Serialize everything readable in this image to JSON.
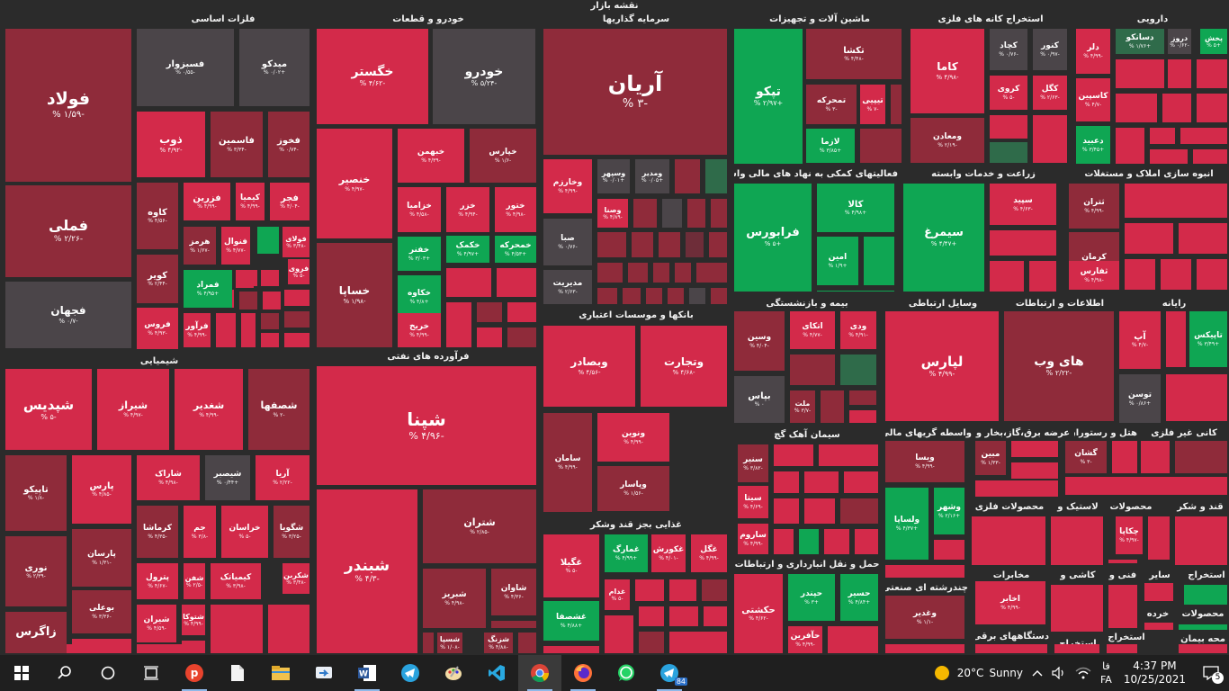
{
  "map_title": "نقشه بازار",
  "colors": {
    "red": "#d32a4a",
    "red2": "#c42542",
    "maroon": "#8f2b3a",
    "dkmaroon": "#6e2d39",
    "gray": "#4b4549",
    "green": "#0fa653",
    "dkgreen": "#2f6b4a",
    "mgreen": "#1e8c4f"
  },
  "sectors": [
    {
      "id": "s1",
      "title": "فلزات اساسی"
    },
    {
      "id": "s2",
      "title": "خودرو و قطعات"
    },
    {
      "id": "s3",
      "title": "سرمایه گذاریها"
    },
    {
      "id": "s4",
      "title": "ماشین آلات و تجهیزات"
    },
    {
      "id": "s5",
      "title": "استخراج کانه های فلزی"
    },
    {
      "id": "s6",
      "title": "دارویی"
    },
    {
      "id": "s7",
      "title": "شیمیایی"
    },
    {
      "id": "s8",
      "title": "فرآورده های نفتی"
    },
    {
      "id": "s9",
      "title": "بانکها و موسسات اعتباری"
    },
    {
      "id": "s10",
      "title": "فعالیتهای کمکی به نهاد های مالی واسط"
    },
    {
      "id": "s11",
      "title": "زراعت و خدمات وابسته"
    },
    {
      "id": "s12",
      "title": "انبوه سازی املاک و مستغلات"
    },
    {
      "id": "s13",
      "title": "بیمه و بازنشستگی"
    },
    {
      "id": "s14",
      "title": "وسایل ارتباطی"
    },
    {
      "id": "s15",
      "title": "اطلاعات و ارتباطات"
    },
    {
      "id": "s16",
      "title": "رایانه"
    },
    {
      "id": "s17",
      "title": "سیمان آهک گچ"
    },
    {
      "id": "s18",
      "title": "واسطه گریهای مالی و"
    },
    {
      "id": "s19",
      "title": "عرضه برق،گاز،بخار و"
    },
    {
      "id": "s20",
      "title": "هتل و رستوران"
    },
    {
      "id": "s21",
      "title": "کانی غیر فلزی"
    },
    {
      "id": "s22",
      "title": "غذایی بجز قند وشکر"
    },
    {
      "id": "s23",
      "title": "محصولات فلزی"
    },
    {
      "id": "s24",
      "title": "لاستیک و"
    },
    {
      "id": "s25",
      "title": "محصولات"
    },
    {
      "id": "s26",
      "title": "قند و شکر"
    },
    {
      "id": "s27",
      "title": "حمل و نقل انبارداری و ارتباطات"
    },
    {
      "id": "s28",
      "title": "چندرشته ای صنعتی"
    },
    {
      "id": "s29",
      "title": "مخابرات"
    },
    {
      "id": "s30",
      "title": "کاشی و"
    },
    {
      "id": "s31",
      "title": "فنی و"
    },
    {
      "id": "s32",
      "title": "سایر"
    },
    {
      "id": "s33",
      "title": "استخراج"
    },
    {
      "id": "s34",
      "title": "دستگاههای برقی"
    },
    {
      "id": "s35",
      "title": "استخراج"
    },
    {
      "id": "s36",
      "title": "استخراج"
    },
    {
      "id": "s37",
      "title": "خرده"
    },
    {
      "id": "s38",
      "title": "محصولات"
    },
    {
      "id": "s39",
      "title": "محه بیمان"
    }
  ],
  "tiles": [
    {
      "n": "فولاد",
      "p": "-۱/۵۹ %"
    },
    {
      "n": "فسبزوار",
      "p": "-۰/۵۵ %"
    },
    {
      "n": "میدکو",
      "p": "+۰/۰۲ %"
    },
    {
      "n": "ذوب",
      "p": "-۴/۹۲ %"
    },
    {
      "n": "فاسمین",
      "p": "-۳/۳۴ %"
    },
    {
      "n": "فخوز",
      "p": "-۰/۷۴ %"
    },
    {
      "n": "فملی",
      "p": "-۲/۲۶ %"
    },
    {
      "n": "کاوه",
      "p": "-۴/۵۶ %"
    },
    {
      "n": "فزرین",
      "p": "-۴/۹۹ %"
    },
    {
      "n": "کیمیا",
      "p": "-۴/۹۹ %"
    },
    {
      "n": "فجر",
      "p": "-۴/۰۴ %"
    },
    {
      "n": "هرمز",
      "p": "-۱/۶۷ %"
    },
    {
      "n": "فنوال",
      "p": "-۴/۷۷ %"
    },
    {
      "n": "فولای",
      "p": "-۳/۴۸ %"
    },
    {
      "n": "کویر",
      "p": "-۲/۴۴ %"
    },
    {
      "n": "فمراد",
      "p": "+۴/۹۵ %"
    },
    {
      "n": "فروی",
      "p": "-۵ %"
    },
    {
      "n": "فجهان",
      "p": "-۰/۷ %"
    },
    {
      "n": "فروس",
      "p": "-۴/۹۳ %"
    },
    {
      "n": "فرآور",
      "p": "-۴/۹۹ %"
    },
    {
      "n": "خگستر",
      "p": "-۴/۶۲ %"
    },
    {
      "n": "خودرو",
      "p": "-۵/۲۴ %"
    },
    {
      "n": "خنصیر",
      "p": "-۴/۹۷ %"
    },
    {
      "n": "خبهمن",
      "p": "-۴/۳۹ %"
    },
    {
      "n": "خپارس",
      "p": "-۱/۶ %"
    },
    {
      "n": "خزامیا",
      "p": "-۴/۵۸ %"
    },
    {
      "n": "خزر",
      "p": "-۴/۹۴ %"
    },
    {
      "n": "ختور",
      "p": "-۴/۹۸ %"
    },
    {
      "n": "خکمک",
      "p": "+۴/۹۷ %"
    },
    {
      "n": "خمحرکه",
      "p": "+۴/۵۳ %"
    },
    {
      "n": "خفنر",
      "p": "+۳/۰۳ %"
    },
    {
      "n": "خساپا",
      "p": "-۱/۹۸ %"
    },
    {
      "n": "خکاوه",
      "p": "+۴/۸ %"
    },
    {
      "n": "خریخ",
      "p": "-۴/۹۹ %"
    },
    {
      "n": "آریان",
      "p": "-۳ %"
    },
    {
      "n": "وخارزم",
      "p": "-۴/۹۹ %"
    },
    {
      "n": "وسپهر",
      "p": "+۰/۰۱ %"
    },
    {
      "n": "ومدیر",
      "p": "+۰/۰۵ %"
    },
    {
      "n": "وصنا",
      "p": "-۴/۸۹ %"
    },
    {
      "n": "صبا",
      "p": "-۰/۷۶ %"
    },
    {
      "n": "مدیریت",
      "p": "-۲/۶۳ %"
    },
    {
      "n": "تپکو",
      "p": "+۲/۹۷ %"
    },
    {
      "n": "تکشا",
      "p": "-۴/۴۸ %"
    },
    {
      "n": "تمحرکه",
      "p": "-۳ %"
    },
    {
      "n": "تیپیی",
      "p": "-۷ %"
    },
    {
      "n": "لازما",
      "p": "+۳/۸۵ %"
    },
    {
      "n": "کاما",
      "p": "-۴/۹۸ %"
    },
    {
      "n": "کچاد",
      "p": "-۰/۷۶ %"
    },
    {
      "n": "کنور",
      "p": "-۰/۹۷ %"
    },
    {
      "n": "کروی",
      "p": "-۵ %"
    },
    {
      "n": "کگل",
      "p": "-۲/۶۳ %"
    },
    {
      "n": "ومعادن",
      "p": "-۲/۱۹ %"
    },
    {
      "n": "دلر",
      "p": "-۴/۹۹ %"
    },
    {
      "n": "دسانکو",
      "p": "+۱/۷۶ %"
    },
    {
      "n": "دروز",
      "p": "-۰/۶۲ %"
    },
    {
      "n": "پخش",
      "p": "+۵ %"
    },
    {
      "n": "کاسپین",
      "p": "-۴/۷ %"
    },
    {
      "n": "دعبید",
      "p": "+۳/۴۵ %"
    },
    {
      "n": "شپدیس",
      "p": "-۵ %"
    },
    {
      "n": "شیراز",
      "p": "-۴/۹۷ %"
    },
    {
      "n": "شغدیر",
      "p": "-۴/۹۹ %"
    },
    {
      "n": "شصفها",
      "p": "-۲ %"
    },
    {
      "n": "تاپیکو",
      "p": "-۱/۸ %"
    },
    {
      "n": "پارس",
      "p": "-۴/۸۵ %"
    },
    {
      "n": "شاراک",
      "p": "-۴/۹۸ %"
    },
    {
      "n": "شیصبر",
      "p": "+۰/۴۴ %"
    },
    {
      "n": "آریا",
      "p": "-۲/۲۲ %"
    },
    {
      "n": "پارسان",
      "p": "-۱/۳۱ %"
    },
    {
      "n": "کرماشا",
      "p": "-۴/۳۵ %"
    },
    {
      "n": "جم",
      "p": "-۳/۸ %"
    },
    {
      "n": "خراسان",
      "p": "-۵ %"
    },
    {
      "n": "شگویا",
      "p": "-۳/۲۵ %"
    },
    {
      "n": "نوری",
      "p": "-۲/۳۹ %"
    },
    {
      "n": "پترول",
      "p": "-۴/۶۷ %"
    },
    {
      "n": "شفن",
      "p": "-۲/۵ %"
    },
    {
      "n": "کیمیاتک",
      "p": "-۳/۹۸ %"
    },
    {
      "n": "شکربن",
      "p": "-۳/۴۸ %"
    },
    {
      "n": "بوعلی",
      "p": "-۳/۳۶ %"
    },
    {
      "n": "شیران",
      "p": "-۴/۵۹ %"
    },
    {
      "n": "شتوکا",
      "p": "-۴/۹۹ %"
    },
    {
      "n": "زاگرس",
      "p": ""
    },
    {
      "n": "شپنا",
      "p": "-۴/۹۶ %"
    },
    {
      "n": "شبندر",
      "p": "-۴/۳ %"
    },
    {
      "n": "شتران",
      "p": "-۲/۸۵ %"
    },
    {
      "n": "شبریز",
      "p": "-۴/۹۸ %"
    },
    {
      "n": "شاوان",
      "p": "-۴/۳۶ %"
    },
    {
      "n": "شسپا",
      "p": "-۱/۰۸ %"
    },
    {
      "n": "شزنگ",
      "p": "-۴/۸۸ %"
    },
    {
      "n": "وبصادر",
      "p": "-۴/۵۶ %"
    },
    {
      "n": "وتجارت",
      "p": "-۴/۶۸ %"
    },
    {
      "n": "ونوین",
      "p": "-۴/۹۹ %"
    },
    {
      "n": "سامان",
      "p": "-۴/۹۹ %"
    },
    {
      "n": "وپاسار",
      "p": "-۱/۵۶ %"
    },
    {
      "n": "فرابورس",
      "p": "+۵ %"
    },
    {
      "n": "کالا",
      "p": "+۴/۹۸ %"
    },
    {
      "n": "امین",
      "p": "+۱/۹ %"
    },
    {
      "n": "سیمرغ",
      "p": "+۴/۴۷ %"
    },
    {
      "n": "سپید",
      "p": "-۴/۶۳ %"
    },
    {
      "n": "ثتران",
      "p": "-۴/۹۹ %"
    },
    {
      "n": "کرمان",
      "p": "-۲/۵ %"
    },
    {
      "n": "ثفارس",
      "p": "-۴/۹۸ %"
    },
    {
      "n": "وسین",
      "p": "-۴/۰۴ %"
    },
    {
      "n": "اتکای",
      "p": "-۴/۷۷ %"
    },
    {
      "n": "ودی",
      "p": "-۴/۹۱ %"
    },
    {
      "n": "بپاس",
      "p": "۰ %"
    },
    {
      "n": "ملت",
      "p": "-۳/۷ %"
    },
    {
      "n": "لپارس",
      "p": "-۴/۹۹ %"
    },
    {
      "n": "های وب",
      "p": "-۲/۲۲ %"
    },
    {
      "n": "آپ",
      "p": "-۴/۷ %"
    },
    {
      "n": "تاپیکس",
      "p": "+۳/۴۹ %"
    },
    {
      "n": "توسن",
      "p": "+۰/۸۶ %"
    },
    {
      "n": "سنیر",
      "p": "-۳/۸۲ %"
    },
    {
      "n": "سیتا",
      "p": "-۴/۶۹ %"
    },
    {
      "n": "ساروم",
      "p": "-۴/۹۹ %"
    },
    {
      "n": "ویسا",
      "p": "-۴/۹۹ %"
    },
    {
      "n": "ولساپا",
      "p": "+۴/۳۷ %"
    },
    {
      "n": "وشهر",
      "p": "+۲/۱۶ %"
    },
    {
      "n": "مبین",
      "p": "-۱/۳۳ %"
    },
    {
      "n": "گشان",
      "p": "-۳ %"
    },
    {
      "n": "غگیلا",
      "p": "-۵ %"
    },
    {
      "n": "غمارگ",
      "p": "+۴/۹۹ %"
    },
    {
      "n": "غکورش",
      "p": "-۴/۰۱ %"
    },
    {
      "n": "غگل",
      "p": "-۴/۹۹ %"
    },
    {
      "n": "غدام",
      "p": "-۵ %"
    },
    {
      "n": "غشصفا",
      "p": "+۴/۸۸ %"
    },
    {
      "n": "حکشتی",
      "p": "-۴/۶۲ %"
    },
    {
      "n": "حپندر",
      "p": "+۳ %"
    },
    {
      "n": "حسیر",
      "p": "+۴/۸۴ %"
    },
    {
      "n": "حآفرین",
      "p": "-۴/۹۹ %"
    },
    {
      "n": "وغدیر",
      "p": "-۱/۱ %"
    },
    {
      "n": "اخابر",
      "p": "-۴/۹۹ %"
    },
    {
      "n": "چکاپا",
      "p": "-۴/۹۷ %"
    }
  ],
  "taskbar": {
    "icons": [
      "start-icon",
      "search-icon",
      "cortana-icon",
      "task-view-icon",
      "phoxy-app-icon",
      "file-icon",
      "file-explorer-icon",
      "remote-app-icon",
      "word-icon",
      "telegram-icon",
      "paint-icon",
      "vscode-icon",
      "chrome-icon",
      "firefox-icon",
      "whatsapp-icon",
      "telegram-icon-2"
    ],
    "telegram_badge": "84",
    "weather_temp": "20°C",
    "weather_text": "Sunny",
    "lang_top": "فا",
    "lang_bottom": "FA",
    "time": "4:37 PM",
    "date": "10/25/2021",
    "notification_count": "5"
  }
}
